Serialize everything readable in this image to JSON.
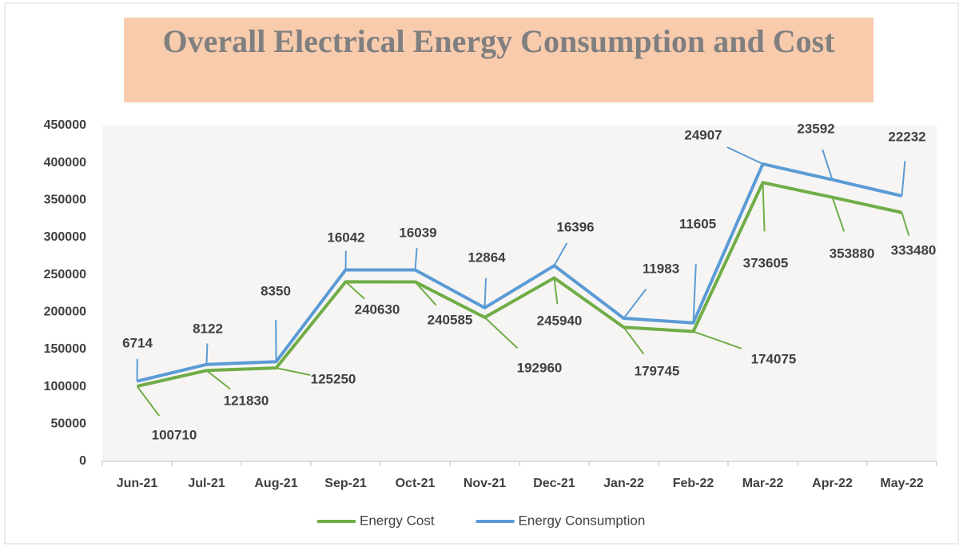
{
  "chart_data": {
    "type": "line",
    "stacked": true,
    "title": "Overall Electrical Energy Consumption and Cost",
    "categories": [
      "Jun-21",
      "Jul-21",
      "Aug-21",
      "Sep-21",
      "Oct-21",
      "Nov-21",
      "Dec-21",
      "Jan-22",
      "Feb-22",
      "Mar-22",
      "Apr-22",
      "May-22"
    ],
    "series": [
      {
        "name": "Energy Cost",
        "color": "#70ad47",
        "values": [
          100710,
          121830,
          125250,
          240630,
          240585,
          192960,
          245940,
          179745,
          174075,
          373605,
          353880,
          333480
        ]
      },
      {
        "name": "Energy Consumption",
        "color": "#5b9bd5",
        "values": [
          6714,
          8122,
          8350,
          16042,
          16039,
          12864,
          16396,
          11983,
          11605,
          24907,
          23592,
          22232
        ]
      }
    ],
    "ylim": [
      0,
      450000
    ],
    "yticks": [
      0,
      50000,
      100000,
      150000,
      200000,
      250000,
      300000,
      350000,
      400000,
      450000
    ],
    "grid": false,
    "legend": "bottom"
  }
}
